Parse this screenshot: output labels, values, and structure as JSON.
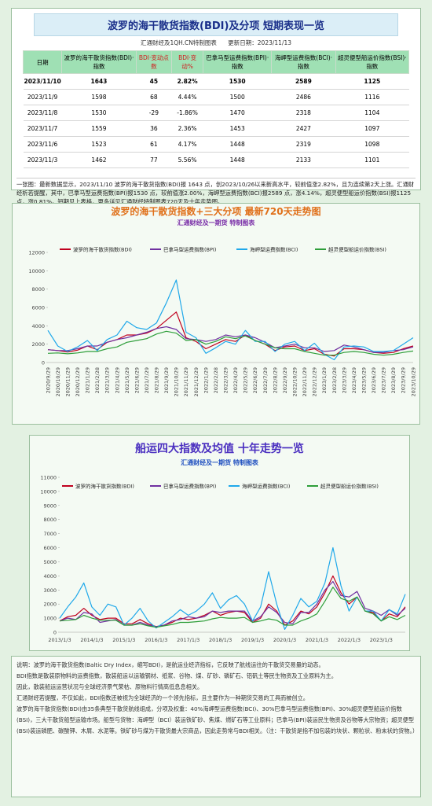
{
  "header": {
    "title": "波罗的海干散货指数(BDI)及分项  短期表现一览",
    "subtitle": "汇通财经及1QH.CN特制图表",
    "update": "更新日期：2023/11/13"
  },
  "table": {
    "columns": [
      "日期",
      "波罗的海干散货指数(BDI)·指数",
      "BDI·变动点数",
      "BDI·变动%",
      "巴拿马型运费指数(BPI)·指数",
      "海岬型运费指数(BCI)·指数",
      "超灵便型船运价指数(BSI)·指数"
    ],
    "rows": [
      [
        "2023/11/10",
        "1643",
        "45",
        "2.82%",
        "1530",
        "2589",
        "1125"
      ],
      [
        "2023/11/9",
        "1598",
        "68",
        "4.44%",
        "1500",
        "2486",
        "1116"
      ],
      [
        "2023/11/8",
        "1530",
        "-29",
        "-1.86%",
        "1470",
        "2318",
        "1104"
      ],
      [
        "2023/11/7",
        "1559",
        "36",
        "2.36%",
        "1453",
        "2427",
        "1097"
      ],
      [
        "2023/11/6",
        "1523",
        "61",
        "4.17%",
        "1448",
        "2319",
        "1098"
      ],
      [
        "2023/11/3",
        "1462",
        "77",
        "5.56%",
        "1448",
        "2133",
        "1101"
      ]
    ]
  },
  "summary": "一张图：最新数据显示，2023/11/10 波罗的海干散货指数(BDI)报 1643 点，创2023/10/26以来新高水平，较前值涨2.82%，且为连续第2天上涨。汇通财经析若提醒，其中，巴拿马型运费指数(BPI)报1530 点，较前值涨2.00%，海岬型运费指数(BCI)报2589 点，涨4.14%，超灵便型船运价指数(BSI)报1125 点，涨0.81%。短期见上表格，更多详见汇通财经特制图表720天及十年走势图。",
  "chart_data": [
    {
      "type": "line",
      "title": "波罗的海干散货指数+三大分项  最新720天走势图",
      "subtitle": "汇通财经及一期货  特制图表",
      "categories": [
        "2020/9/29",
        "2020/10/29",
        "2020/11/29",
        "2020/12/29",
        "2021/1/29",
        "2021/2/28",
        "2021/3/29",
        "2021/4/29",
        "2021/5/29",
        "2021/6/29",
        "2021/7/29",
        "2021/8/29",
        "2021/9/29",
        "2021/10/29",
        "2021/11/29",
        "2021/12/29",
        "2022/1/29",
        "2022/2/28",
        "2022/3/29",
        "2022/4/29",
        "2022/5/29",
        "2022/6/29",
        "2022/7/29",
        "2022/8/29",
        "2022/9/29",
        "2022/10/29",
        "2022/11/29",
        "2022/12/29",
        "2023/1/29",
        "2023/2/28",
        "2023/3/29",
        "2023/4/29",
        "2023/5/29",
        "2023/6/29",
        "2023/7/29",
        "2023/8/29",
        "2023/9/29",
        "2023/10/29"
      ],
      "series": [
        {
          "name": "波罗的海干散货指数(BDI)",
          "color": "#c0001e",
          "values": [
            1400,
            1300,
            1150,
            1350,
            1800,
            1400,
            2200,
            2500,
            3000,
            3000,
            3200,
            3700,
            4600,
            5500,
            2700,
            2300,
            1500,
            2000,
            2500,
            2300,
            3000,
            2400,
            2000,
            1300,
            1700,
            1800,
            1300,
            1500,
            900,
            700,
            1500,
            1500,
            1400,
            1100,
            1000,
            1100,
            1500,
            1800
          ]
        },
        {
          "name": "巴拿马型运费指数(BPI)",
          "color": "#7030a0",
          "values": [
            1400,
            1300,
            1300,
            1500,
            1800,
            1800,
            2200,
            2500,
            2700,
            3000,
            3300,
            3700,
            3900,
            3600,
            2600,
            2500,
            2300,
            2500,
            3000,
            2800,
            3000,
            2700,
            2200,
            1600,
            1800,
            2000,
            1600,
            1600,
            1200,
            1300,
            1900,
            1700,
            1400,
            1100,
            1100,
            1300,
            1400,
            1700
          ]
        },
        {
          "name": "海岬型运费指数(BCI)",
          "color": "#1fa8ea",
          "values": [
            3500,
            1800,
            1200,
            1700,
            2400,
            1300,
            2500,
            3000,
            4500,
            3800,
            3600,
            4300,
            6500,
            9000,
            3300,
            2700,
            1000,
            1600,
            2300,
            2000,
            3500,
            2300,
            2300,
            1200,
            2000,
            2300,
            1300,
            2100,
            900,
            300,
            1700,
            1800,
            1700,
            1200,
            1200,
            1300,
            2000,
            2700
          ]
        },
        {
          "name": "超灵便型船运价指数(BSI)",
          "color": "#2e9e3a",
          "values": [
            1000,
            1050,
            950,
            1050,
            1200,
            1200,
            1500,
            1700,
            2200,
            2400,
            2600,
            3100,
            3400,
            3200,
            2400,
            2500,
            2000,
            2300,
            2800,
            2600,
            2900,
            2400,
            2000,
            1600,
            1500,
            1500,
            1200,
            1000,
            800,
            800,
            1100,
            1200,
            1100,
            900,
            800,
            900,
            1100,
            1250
          ]
        }
      ],
      "ylim": [
        0,
        12000
      ],
      "yticks": [
        0,
        2000,
        4000,
        6000,
        8000,
        10000,
        12000
      ],
      "grid": false
    },
    {
      "type": "line",
      "title": "船运四大指数及均值  十年走势一览",
      "subtitle": "汇通财经及一期货  特制图表",
      "categories": [
        "2013/1/3",
        null,
        null,
        null,
        "2014/1/3",
        null,
        null,
        null,
        "2015/1/3",
        null,
        null,
        null,
        "2016/1/3",
        null,
        null,
        null,
        "2017/1/3",
        null,
        null,
        null,
        "2018/1/3",
        null,
        null,
        null,
        "2019/1/3",
        null,
        null,
        null,
        "2020/1/3",
        null,
        null,
        null,
        "2021/1/3",
        null,
        null,
        null,
        "2022/1/3",
        null,
        null,
        null,
        "2023/1/3",
        null,
        null,
        null
      ],
      "series": [
        {
          "name": "波罗的海干散货指数(BDI)",
          "color": "#c0001e",
          "values": [
            800,
            1100,
            1200,
            1700,
            1200,
            900,
            1000,
            1000,
            600,
            600,
            900,
            600,
            400,
            500,
            700,
            1000,
            900,
            1000,
            1200,
            1500,
            1200,
            1400,
            1500,
            1400,
            700,
            1000,
            2000,
            1500,
            500,
            800,
            1500,
            1300,
            1800,
            2800,
            4000,
            2800,
            2000,
            2500,
            1500,
            1400,
            800,
            1300,
            1100,
            1800
          ]
        },
        {
          "name": "巴拿马型运费指数(BPI)",
          "color": "#7030a0",
          "values": [
            800,
            1000,
            900,
            1400,
            1300,
            700,
            800,
            900,
            500,
            500,
            700,
            500,
            400,
            500,
            800,
            900,
            1100,
            1000,
            1100,
            1500,
            1400,
            1500,
            1500,
            1500,
            800,
            1100,
            1800,
            1400,
            700,
            600,
            1400,
            1400,
            2000,
            3000,
            3600,
            2600,
            2500,
            2900,
            1700,
            1500,
            1200,
            1600,
            1200,
            1700
          ]
        },
        {
          "name": "海岬型运费指数(BCI)",
          "color": "#1fa8ea",
          "values": [
            1000,
            1800,
            2500,
            3500,
            1800,
            1200,
            2000,
            1800,
            500,
            1000,
            1700,
            800,
            300,
            700,
            1100,
            1600,
            1200,
            1500,
            2000,
            2800,
            1700,
            2300,
            2600,
            2000,
            800,
            1800,
            4300,
            2000,
            200,
            1200,
            2400,
            1800,
            2200,
            3500,
            6000,
            3300,
            1500,
            2500,
            1500,
            1500,
            800,
            1600,
            1300,
            2700
          ]
        },
        {
          "name": "超灵便型船运价指数(BSI)",
          "color": "#2e9e3a",
          "values": [
            800,
            850,
            900,
            1200,
            1000,
            850,
            850,
            850,
            500,
            500,
            600,
            450,
            350,
            450,
            550,
            700,
            700,
            750,
            800,
            950,
            1050,
            1000,
            1000,
            1050,
            700,
            800,
            950,
            850,
            500,
            500,
            800,
            1000,
            1300,
            2200,
            3200,
            2400,
            2200,
            2500,
            1500,
            1300,
            800,
            1100,
            900,
            1200
          ]
        }
      ],
      "ylim": [
        0,
        11000
      ],
      "yticks": [
        0,
        1000,
        2000,
        3000,
        4000,
        5000,
        6000,
        7000,
        8000,
        9000,
        10000,
        11000
      ],
      "grid": false
    }
  ],
  "notes": [
    "说明：波罗的海干散货指数(Baltic Dry Index，缩写BDI)，是航运业经济指标，它反映了航线运往的干散货交易量的动态。",
    "BDI指数是散装原物料的运费指数，散装船运以运输钢材、纸浆、谷物、煤、矿砂、磷矿石、铝矾土等民生物资及工业原料为主。",
    "因此，散装船运运营状况与全球经济景气荣枯、原物料行情高低息息相关。",
    "汇通财经若提醒，不仅如此，BDI指数还被视为全球经济的一个领先指标，且主要作为一种期货交易的工具而被创立。",
    "波罗的海干散货指数(BDI)由35条典型干散货航线组成，分项及权重：40%海岬型运费指数(BCI)、30%巴拿马型运费指数(BPI)、30%超灵便型船运价指数(BSI)，三大干散货船型运输市场。船型与货物：海岬型（BCI）装运铁矿砂、焦煤、燃矿石等工业原料；巴拿马(BPI)装运民生物资及谷物等大宗物资；超灵便型(BSI)装运磷肥、碳酸钾、木屑、水泥等。铁矿砂与煤为干散货最大宗商品，因此走势常与BDI相关。（注：干散货是指不加包装的块状、颗粒状、粉末状的货物。）"
  ]
}
